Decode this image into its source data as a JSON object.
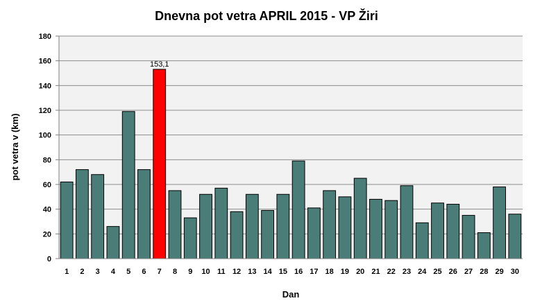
{
  "chart_data": {
    "type": "bar",
    "title": "Dnevna pot vetra APRIL 2015 - VP Žiri",
    "xlabel": "Dan",
    "ylabel": "pot vetra  v (km)",
    "ylim": [
      0,
      180
    ],
    "yticks": [
      0,
      20,
      40,
      60,
      80,
      100,
      120,
      140,
      160,
      180
    ],
    "grid": true,
    "categories": [
      "1",
      "2",
      "3",
      "4",
      "5",
      "6",
      "7",
      "8",
      "9",
      "10",
      "11",
      "12",
      "13",
      "14",
      "15",
      "16",
      "17",
      "18",
      "19",
      "20",
      "21",
      "22",
      "23",
      "24",
      "25",
      "26",
      "27",
      "28",
      "29",
      "30"
    ],
    "values": [
      62,
      72,
      68,
      26,
      119,
      72,
      153.1,
      55,
      33,
      52,
      57,
      38,
      52,
      39,
      52,
      79,
      41,
      55,
      50,
      65,
      48,
      47,
      59,
      29,
      45,
      44,
      35,
      21,
      58,
      36
    ],
    "highlight_index": 6,
    "highlight_label": "153,1",
    "colors": {
      "bar": "#4a7c78",
      "highlight": "#ff0000",
      "plot_bg": "#f2f2f2",
      "grid": "#8c8c8c"
    }
  }
}
